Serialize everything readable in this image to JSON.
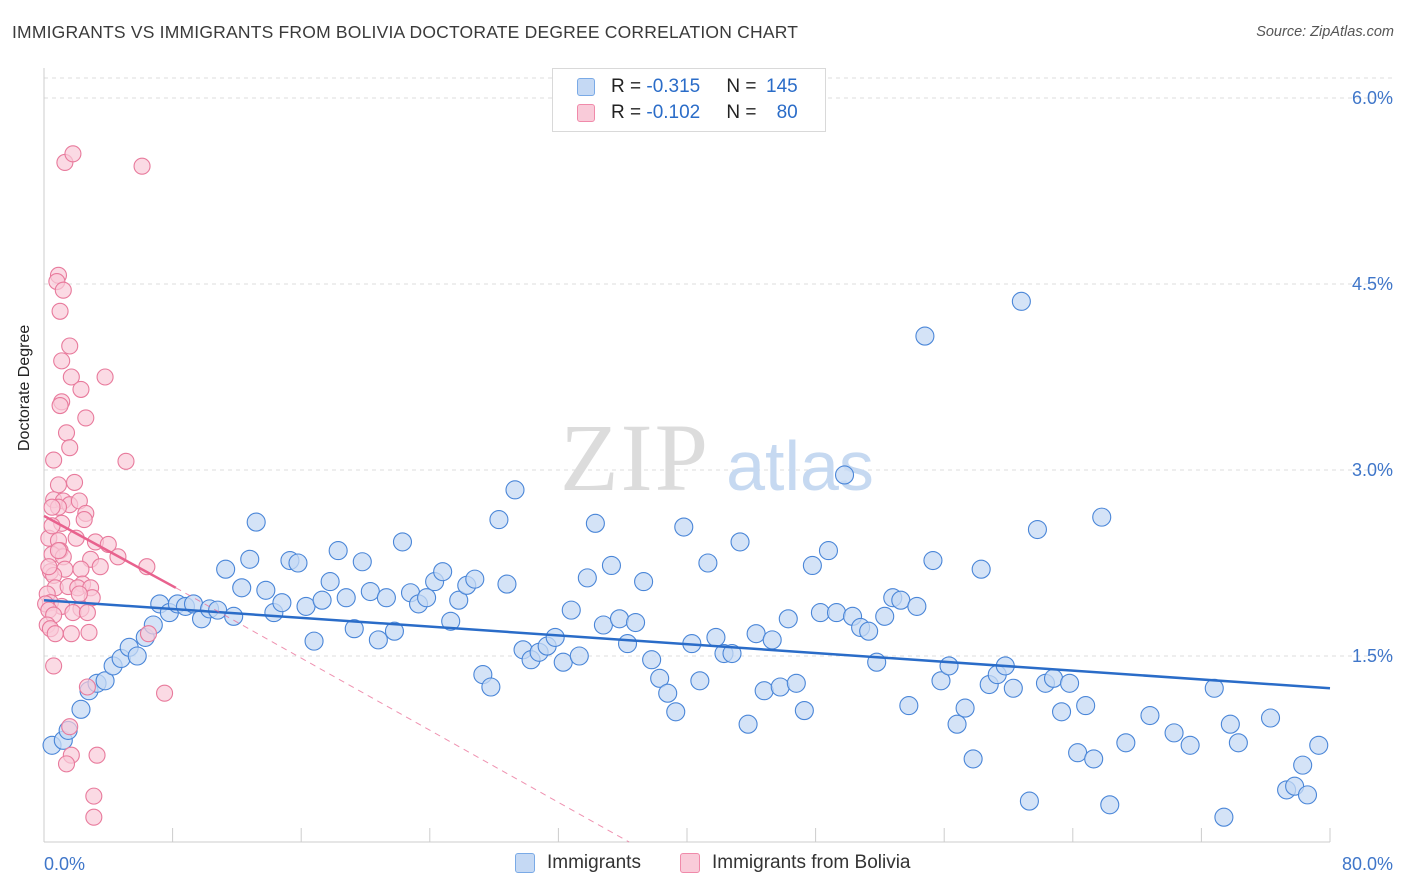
{
  "title": "IMMIGRANTS VS IMMIGRANTS FROM BOLIVIA DOCTORATE DEGREE CORRELATION CHART",
  "source": "Source: ZipAtlas.com",
  "watermark": {
    "zip": "ZIP",
    "atlas": "atlas"
  },
  "legend": {
    "series": [
      {
        "r_label": "R = ",
        "r_value": "-0.315",
        "n_label": "N = ",
        "n_value": "145",
        "color": "#7aaae6",
        "fill": "#c5d9f4"
      },
      {
        "r_label": "R = ",
        "r_value": "-0.102",
        "n_label": "N = ",
        "n_value": "80",
        "color": "#f08aaa",
        "fill": "#f9cbd9"
      }
    ]
  },
  "bottom_legend": [
    "Immigrants",
    "Immigrants from Bolivia"
  ],
  "colors": {
    "blue": "#4a86d8",
    "blue_fill": "#c5d9f4",
    "blue_line": "#2a6cc8",
    "pink": "#e87a9c",
    "pink_fill": "#f9cbd9",
    "pink_line": "#e8628e",
    "axis_text": "#3f76c9"
  },
  "chart_data": {
    "type": "scatter",
    "title": "IMMIGRANTS VS IMMIGRANTS FROM BOLIVIA DOCTORATE DEGREE CORRELATION CHART",
    "xlabel": "",
    "ylabel": "Doctorate Degree",
    "xlim": [
      0,
      80
    ],
    "ylim": [
      0,
      6.3
    ],
    "x_tick_labels": [
      "0.0%",
      "80.0%"
    ],
    "y_ticks": [
      1.5,
      3.0,
      4.5,
      6.0
    ],
    "y_tick_labels": [
      "1.5%",
      "3.0%",
      "4.5%",
      "6.0%"
    ],
    "grid": "horizontal dashed",
    "legend_position": "top-center",
    "series": [
      {
        "name": "Immigrants",
        "trend": {
          "x": [
            0,
            80
          ],
          "y": [
            1.95,
            1.24
          ]
        },
        "points": [
          [
            0.5,
            0.78
          ],
          [
            1.2,
            0.82
          ],
          [
            1.5,
            0.9
          ],
          [
            2.3,
            1.07
          ],
          [
            2.8,
            1.22
          ],
          [
            3.3,
            1.28
          ],
          [
            3.8,
            1.3
          ],
          [
            4.3,
            1.42
          ],
          [
            4.8,
            1.48
          ],
          [
            5.3,
            1.57
          ],
          [
            5.8,
            1.5
          ],
          [
            6.3,
            1.65
          ],
          [
            6.8,
            1.75
          ],
          [
            7.2,
            1.92
          ],
          [
            7.8,
            1.85
          ],
          [
            8.3,
            1.92
          ],
          [
            8.8,
            1.9
          ],
          [
            9.3,
            1.92
          ],
          [
            9.8,
            1.8
          ],
          [
            10.3,
            1.88
          ],
          [
            10.8,
            1.87
          ],
          [
            11.3,
            2.2
          ],
          [
            11.8,
            1.82
          ],
          [
            12.3,
            2.05
          ],
          [
            12.8,
            2.28
          ],
          [
            13.2,
            2.58
          ],
          [
            13.8,
            2.03
          ],
          [
            14.3,
            1.85
          ],
          [
            14.8,
            1.93
          ],
          [
            15.3,
            2.27
          ],
          [
            15.8,
            2.25
          ],
          [
            16.3,
            1.9
          ],
          [
            16.8,
            1.62
          ],
          [
            17.3,
            1.95
          ],
          [
            17.8,
            2.1
          ],
          [
            18.3,
            2.35
          ],
          [
            18.8,
            1.97
          ],
          [
            19.3,
            1.72
          ],
          [
            19.8,
            2.26
          ],
          [
            20.3,
            2.02
          ],
          [
            20.8,
            1.63
          ],
          [
            21.3,
            1.97
          ],
          [
            21.8,
            1.7
          ],
          [
            22.3,
            2.42
          ],
          [
            22.8,
            2.01
          ],
          [
            23.3,
            1.92
          ],
          [
            23.8,
            1.97
          ],
          [
            24.3,
            2.1
          ],
          [
            24.8,
            2.18
          ],
          [
            25.3,
            1.78
          ],
          [
            25.8,
            1.95
          ],
          [
            26.3,
            2.07
          ],
          [
            26.8,
            2.12
          ],
          [
            27.3,
            1.35
          ],
          [
            27.8,
            1.25
          ],
          [
            28.3,
            2.6
          ],
          [
            28.8,
            2.08
          ],
          [
            29.3,
            2.84
          ],
          [
            29.8,
            1.55
          ],
          [
            30.3,
            1.47
          ],
          [
            30.8,
            1.53
          ],
          [
            31.3,
            1.58
          ],
          [
            31.8,
            1.65
          ],
          [
            32.3,
            1.45
          ],
          [
            32.8,
            1.87
          ],
          [
            33.3,
            1.5
          ],
          [
            33.8,
            2.13
          ],
          [
            34.3,
            2.57
          ],
          [
            34.8,
            1.75
          ],
          [
            35.3,
            2.23
          ],
          [
            35.8,
            1.8
          ],
          [
            36.3,
            1.6
          ],
          [
            36.8,
            1.77
          ],
          [
            37.3,
            2.1
          ],
          [
            37.8,
            1.47
          ],
          [
            38.3,
            1.32
          ],
          [
            38.8,
            1.2
          ],
          [
            39.3,
            1.05
          ],
          [
            39.8,
            2.54
          ],
          [
            40.3,
            1.6
          ],
          [
            40.8,
            1.3
          ],
          [
            41.3,
            2.25
          ],
          [
            41.8,
            1.65
          ],
          [
            42.3,
            1.52
          ],
          [
            42.8,
            1.52
          ],
          [
            43.3,
            2.42
          ],
          [
            43.8,
            0.95
          ],
          [
            44.3,
            1.68
          ],
          [
            44.8,
            1.22
          ],
          [
            45.3,
            1.63
          ],
          [
            45.8,
            1.25
          ],
          [
            46.3,
            1.8
          ],
          [
            46.8,
            1.28
          ],
          [
            47.3,
            1.06
          ],
          [
            47.8,
            2.23
          ],
          [
            48.3,
            1.85
          ],
          [
            48.8,
            2.35
          ],
          [
            49.3,
            1.85
          ],
          [
            49.8,
            2.96
          ],
          [
            50.3,
            1.82
          ],
          [
            50.8,
            1.73
          ],
          [
            51.3,
            1.7
          ],
          [
            51.8,
            1.45
          ],
          [
            52.3,
            1.82
          ],
          [
            52.8,
            1.97
          ],
          [
            53.3,
            1.95
          ],
          [
            53.8,
            1.1
          ],
          [
            54.3,
            1.9
          ],
          [
            54.8,
            4.08
          ],
          [
            55.3,
            2.27
          ],
          [
            55.8,
            1.3
          ],
          [
            56.3,
            1.42
          ],
          [
            56.8,
            0.95
          ],
          [
            57.3,
            1.08
          ],
          [
            57.8,
            0.67
          ],
          [
            58.3,
            2.2
          ],
          [
            58.8,
            1.27
          ],
          [
            59.3,
            1.35
          ],
          [
            59.8,
            1.42
          ],
          [
            60.3,
            1.24
          ],
          [
            60.8,
            4.36
          ],
          [
            61.3,
            0.33
          ],
          [
            61.8,
            2.52
          ],
          [
            62.3,
            1.28
          ],
          [
            62.8,
            1.32
          ],
          [
            63.3,
            1.05
          ],
          [
            63.8,
            1.28
          ],
          [
            64.3,
            0.72
          ],
          [
            64.8,
            1.1
          ],
          [
            65.3,
            0.67
          ],
          [
            65.8,
            2.62
          ],
          [
            66.3,
            0.3
          ],
          [
            67.3,
            0.8
          ],
          [
            68.8,
            1.02
          ],
          [
            70.3,
            0.88
          ],
          [
            71.3,
            0.78
          ],
          [
            72.8,
            1.24
          ],
          [
            73.8,
            0.95
          ],
          [
            74.3,
            0.8
          ],
          [
            76.3,
            1.0
          ],
          [
            77.3,
            0.42
          ],
          [
            77.8,
            0.45
          ],
          [
            78.3,
            0.62
          ],
          [
            78.6,
            0.38
          ],
          [
            73.4,
            0.2
          ],
          [
            79.3,
            0.78
          ]
        ]
      },
      {
        "name": "Immigrants from Bolivia",
        "trend": {
          "x": [
            0,
            8.2
          ],
          "y": [
            2.63,
            2.05
          ]
        },
        "trend_extension": {
          "x": [
            8.2,
            36.4
          ],
          "y": [
            2.05,
            0.0
          ]
        },
        "points": [
          [
            1.3,
            5.48
          ],
          [
            1.8,
            5.55
          ],
          [
            6.1,
            5.45
          ],
          [
            0.9,
            4.57
          ],
          [
            0.8,
            4.52
          ],
          [
            1.2,
            4.45
          ],
          [
            1.0,
            4.28
          ],
          [
            1.6,
            4.0
          ],
          [
            1.1,
            3.88
          ],
          [
            1.7,
            3.75
          ],
          [
            3.8,
            3.75
          ],
          [
            2.3,
            3.65
          ],
          [
            1.1,
            3.55
          ],
          [
            1.0,
            3.52
          ],
          [
            2.6,
            3.42
          ],
          [
            1.4,
            3.3
          ],
          [
            1.6,
            3.18
          ],
          [
            0.6,
            3.08
          ],
          [
            5.1,
            3.07
          ],
          [
            0.9,
            2.88
          ],
          [
            0.6,
            2.76
          ],
          [
            1.2,
            2.75
          ],
          [
            1.6,
            2.72
          ],
          [
            0.9,
            2.7
          ],
          [
            2.2,
            2.75
          ],
          [
            2.6,
            2.65
          ],
          [
            0.5,
            2.7
          ],
          [
            0.3,
            2.45
          ],
          [
            1.1,
            2.57
          ],
          [
            2.5,
            2.6
          ],
          [
            0.9,
            2.43
          ],
          [
            3.2,
            2.42
          ],
          [
            1.0,
            2.35
          ],
          [
            0.5,
            2.32
          ],
          [
            1.2,
            2.3
          ],
          [
            2.9,
            2.28
          ],
          [
            4.6,
            2.3
          ],
          [
            6.4,
            2.22
          ],
          [
            0.4,
            2.18
          ],
          [
            1.3,
            2.2
          ],
          [
            2.3,
            2.2
          ],
          [
            3.5,
            2.22
          ],
          [
            2.4,
            2.08
          ],
          [
            0.6,
            2.15
          ],
          [
            0.7,
            2.05
          ],
          [
            1.5,
            2.06
          ],
          [
            2.1,
            2.05
          ],
          [
            2.9,
            2.05
          ],
          [
            0.2,
            2.0
          ],
          [
            0.4,
            1.93
          ],
          [
            1.1,
            1.9
          ],
          [
            2.3,
            1.88
          ],
          [
            0.1,
            1.92
          ],
          [
            0.3,
            1.87
          ],
          [
            0.6,
            1.83
          ],
          [
            1.8,
            1.85
          ],
          [
            2.7,
            1.85
          ],
          [
            3.0,
            1.97
          ],
          [
            0.2,
            1.75
          ],
          [
            0.4,
            1.72
          ],
          [
            0.7,
            1.68
          ],
          [
            1.7,
            1.68
          ],
          [
            2.8,
            1.69
          ],
          [
            6.5,
            1.68
          ],
          [
            0.6,
            1.42
          ],
          [
            2.7,
            1.25
          ],
          [
            7.5,
            1.2
          ],
          [
            1.6,
            0.93
          ],
          [
            1.7,
            0.7
          ],
          [
            3.3,
            0.7
          ],
          [
            1.4,
            0.63
          ],
          [
            3.1,
            0.37
          ],
          [
            3.1,
            0.2
          ],
          [
            0.9,
            2.35
          ],
          [
            2.0,
            2.45
          ],
          [
            0.5,
            2.55
          ],
          [
            1.9,
            2.9
          ],
          [
            2.2,
            2.0
          ],
          [
            4.0,
            2.4
          ],
          [
            0.3,
            2.22
          ]
        ]
      }
    ]
  }
}
